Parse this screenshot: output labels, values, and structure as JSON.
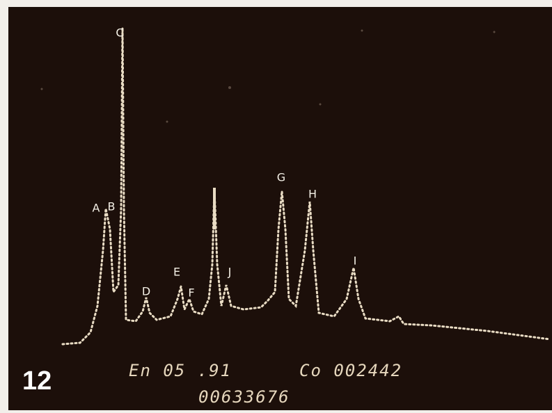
{
  "figure_number": "12",
  "peaks": [
    {
      "label": "C"
    },
    {
      "label": "A"
    },
    {
      "label": "B"
    },
    {
      "label": "D"
    },
    {
      "label": "E"
    },
    {
      "label": "F"
    },
    {
      "label": "J"
    },
    {
      "label": "G"
    },
    {
      "label": "H"
    },
    {
      "label": "I"
    }
  ],
  "readout": {
    "line1_left": "En 05 .91",
    "line1_right": "Co 002442",
    "line2": "00633676"
  }
}
